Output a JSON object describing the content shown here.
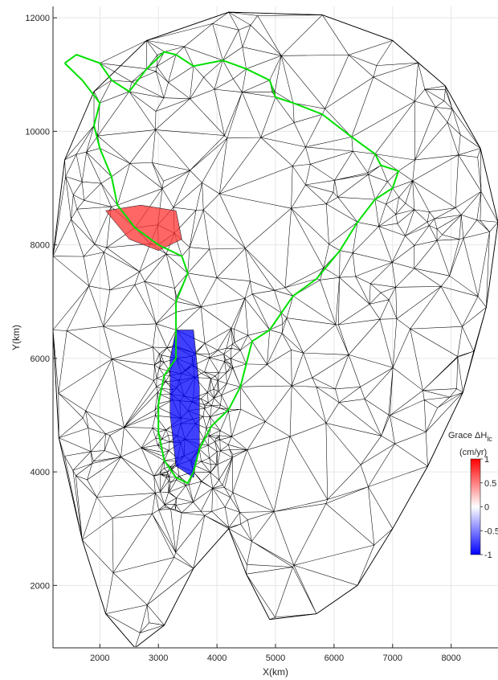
{
  "chart_data": {
    "type": "mesh",
    "xlabel": "X(km)",
    "ylabel": "Y(km)",
    "xlim": [
      1200,
      8800
    ],
    "ylim": [
      900,
      12200
    ],
    "x_ticks": [
      {
        "value": 2000,
        "label": "2000"
      },
      {
        "value": 3000,
        "label": "3000"
      },
      {
        "value": 4000,
        "label": "4000"
      },
      {
        "value": 5000,
        "label": "5000"
      },
      {
        "value": 6000,
        "label": "6000"
      },
      {
        "value": 7000,
        "label": "7000"
      },
      {
        "value": 8000,
        "label": "8000"
      }
    ],
    "y_ticks": [
      {
        "value": 2000,
        "label": "2000"
      },
      {
        "value": 4000,
        "label": "4000"
      },
      {
        "value": 6000,
        "label": "6000"
      },
      {
        "value": 8000,
        "label": "8000"
      },
      {
        "value": 10000,
        "label": "10000"
      },
      {
        "value": 12000,
        "label": "12000"
      }
    ],
    "grid": true,
    "mesh_boundary": [
      [
        5800,
        12050
      ],
      [
        7000,
        11600
      ],
      [
        7900,
        10800
      ],
      [
        8500,
        9700
      ],
      [
        8800,
        8400
      ],
      [
        8600,
        6900
      ],
      [
        8200,
        5400
      ],
      [
        7600,
        4100
      ],
      [
        7000,
        3000
      ],
      [
        6400,
        2000
      ],
      [
        5700,
        1500
      ],
      [
        4900,
        1400
      ],
      [
        4500,
        2200
      ],
      [
        4200,
        3000
      ],
      [
        3600,
        2300
      ],
      [
        3100,
        1300
      ],
      [
        2600,
        900
      ],
      [
        2100,
        1500
      ],
      [
        1700,
        2800
      ],
      [
        1300,
        4600
      ],
      [
        1200,
        6500
      ],
      [
        1200,
        7800
      ],
      [
        1400,
        9500
      ],
      [
        1900,
        10700
      ],
      [
        2800,
        11600
      ],
      [
        4200,
        12100
      ]
    ],
    "coastline": [
      [
        1400,
        11200
      ],
      [
        1600,
        11350
      ],
      [
        2000,
        11200
      ],
      [
        2200,
        10900
      ],
      [
        2500,
        10700
      ],
      [
        2800,
        11100
      ],
      [
        3100,
        11400
      ],
      [
        3300,
        11350
      ],
      [
        3600,
        11150
      ],
      [
        4100,
        11250
      ],
      [
        4500,
        11100
      ],
      [
        4900,
        10900
      ],
      [
        5000,
        10600
      ],
      [
        5300,
        10500
      ],
      [
        5800,
        10300
      ],
      [
        6300,
        9900
      ],
      [
        6700,
        9600
      ],
      [
        6800,
        9400
      ],
      [
        7100,
        9300
      ],
      [
        7000,
        9000
      ],
      [
        6700,
        8800
      ],
      [
        6400,
        8400
      ],
      [
        6100,
        7900
      ],
      [
        5700,
        7400
      ],
      [
        5300,
        7100
      ],
      [
        5100,
        6800
      ],
      [
        4900,
        6500
      ],
      [
        4600,
        6300
      ],
      [
        4500,
        5900
      ],
      [
        4400,
        5500
      ],
      [
        4200,
        5100
      ],
      [
        3900,
        4800
      ],
      [
        3700,
        4400
      ],
      [
        3600,
        4000
      ],
      [
        3500,
        3800
      ],
      [
        3300,
        3900
      ],
      [
        3100,
        4200
      ],
      [
        3000,
        4700
      ],
      [
        3000,
        5200
      ],
      [
        3100,
        5700
      ],
      [
        3300,
        6000
      ],
      [
        3300,
        6500
      ],
      [
        3300,
        7000
      ],
      [
        3500,
        7500
      ],
      [
        3400,
        7800
      ],
      [
        3000,
        8000
      ],
      [
        2600,
        8300
      ],
      [
        2300,
        8700
      ],
      [
        2200,
        9200
      ],
      [
        2000,
        9700
      ],
      [
        1900,
        10100
      ],
      [
        2000,
        10500
      ],
      [
        1700,
        10900
      ],
      [
        1400,
        11200
      ]
    ],
    "color_regions": [
      {
        "label": "positive",
        "value": 0.8,
        "polygon": [
          [
            2100,
            8600
          ],
          [
            2700,
            8700
          ],
          [
            3300,
            8600
          ],
          [
            3400,
            8100
          ],
          [
            3000,
            7900
          ],
          [
            2500,
            8100
          ]
        ]
      },
      {
        "label": "negative",
        "value": -1,
        "polygon": [
          [
            3300,
            6500
          ],
          [
            3600,
            6500
          ],
          [
            3700,
            5500
          ],
          [
            3700,
            4500
          ],
          [
            3600,
            3900
          ],
          [
            3300,
            4100
          ],
          [
            3200,
            5000
          ],
          [
            3200,
            6000
          ]
        ]
      }
    ],
    "colorbar": {
      "title_prefix": "Grace ΔH",
      "title_subscript": "lc",
      "units": "(cm/yr)",
      "min": -1,
      "max": 1,
      "ticks": [
        {
          "value": 1,
          "label": "1"
        },
        {
          "value": 0.5,
          "label": "0.5"
        },
        {
          "value": 0,
          "label": "0"
        },
        {
          "value": -0.5,
          "label": "-0.5"
        },
        {
          "value": -1,
          "label": "-1"
        }
      ],
      "colors": {
        "high": "#ff0000",
        "mid": "#ffffff",
        "low": "#0000ff"
      }
    },
    "colors": {
      "mesh": "#000000",
      "coastline": "#00e000",
      "grid": "#e6e6e6",
      "axes": "#262626"
    }
  }
}
